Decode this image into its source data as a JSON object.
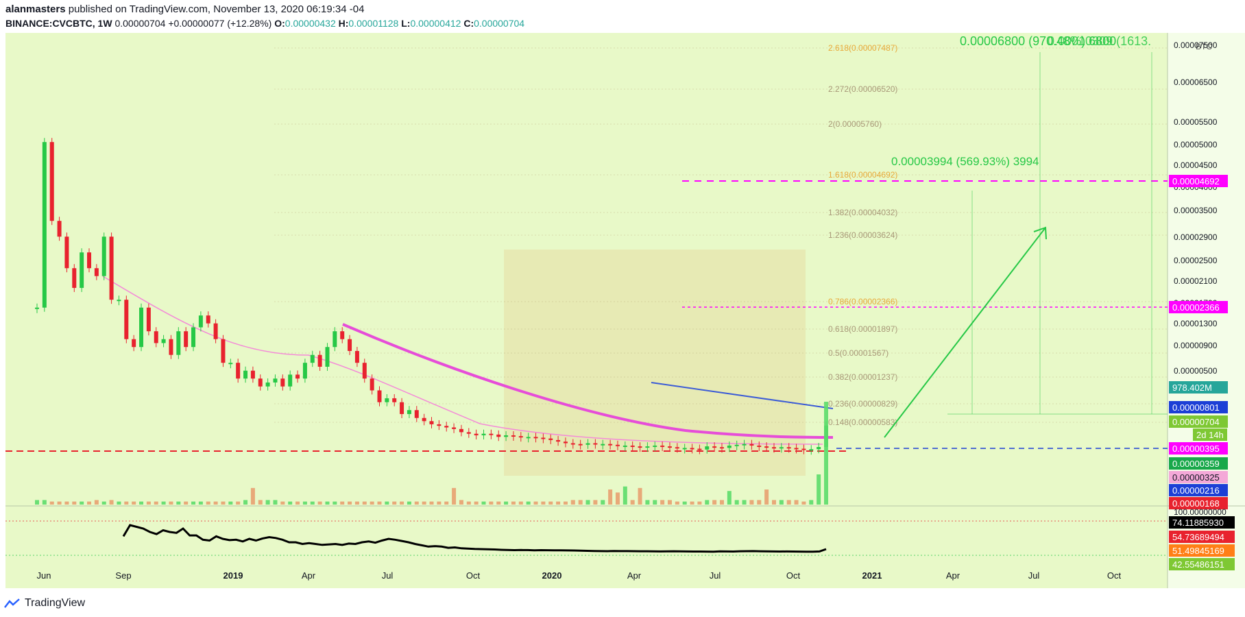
{
  "header": {
    "author": "alanmasters",
    "published": "published on TradingView.com, November 13, 2020 06:19:34 -04",
    "symbol": "BINANCE:CVCBTC, 1W",
    "last": "0.00000704",
    "change": "+0.00000077 (+12.28%)",
    "o_label": "O:",
    "o_value": "0.00000432",
    "h_label": "H:",
    "h_value": "0.00001128",
    "l_label": "L:",
    "l_value": "0.00000412",
    "c_label": "C:",
    "c_value": "0.00000704"
  },
  "footer": {
    "brand": "TradingView",
    "logo_icon": "tradingview-logo-icon"
  },
  "colors": {
    "up": "#26c846",
    "down": "#e8222e",
    "bg": "#e8f9c8",
    "magenta": "#ff00ff",
    "fib": "#c8a048"
  },
  "chart_data": {
    "type": "candlestick",
    "currency": "BTC",
    "x_tick_labels": [
      "Jun",
      "Sep",
      "2019",
      "Apr",
      "Jul",
      "Oct",
      "2020",
      "Apr",
      "Jul",
      "Oct",
      "2021",
      "Apr",
      "Jul",
      "Oct"
    ],
    "y_tick_labels": [
      "0.00007500",
      "0.00006500",
      "0.00005500",
      "0.00005000",
      "0.00004500",
      "0.00004000",
      "0.00003500",
      "0.00002900",
      "0.00002500",
      "0.00002100",
      "0.00001700",
      "0.00001300",
      "0.00000900",
      "0.00000500"
    ],
    "fib_levels": [
      {
        "label": "2.618(0.00007487)"
      },
      {
        "label": "2.272(0.00006520)"
      },
      {
        "label": "2(0.00005760)"
      },
      {
        "label": "1.618(0.00004692)"
      },
      {
        "label": "1.382(0.00004032)"
      },
      {
        "label": "1.236(0.00003624)"
      },
      {
        "label": "0.786(0.00002366)"
      },
      {
        "label": "0.618(0.00001897)"
      },
      {
        "label": "0.5(0.00001567)"
      },
      {
        "label": "0.382(0.00001237)"
      },
      {
        "label": "0.236(0.00000829)"
      },
      {
        "label": "0.148(0.00000583)"
      }
    ],
    "annotations": [
      "0.00006800 (970.48%) 6800",
      "0.00010309 (1613.",
      "0.00003994 (569.93%) 3994"
    ],
    "price_tags": [
      {
        "text": "0.00004692",
        "color": "#ff00ff"
      },
      {
        "text": "0.00002366",
        "color": "#ff00ff"
      },
      {
        "text": "978.402M",
        "color": "#26a69a"
      },
      {
        "text": "0.00000801",
        "color": "#1c3fd6"
      },
      {
        "text": "0.00000704",
        "color": "#7ec833"
      },
      {
        "text": "2d 14h",
        "color": "#7ec833"
      },
      {
        "text": "0.00000395",
        "color": "#ff00ff"
      },
      {
        "text": "0.00000359",
        "color": "#18a84a"
      },
      {
        "text": "0.00000325",
        "color": "#f4a8d8"
      },
      {
        "text": "0.00000216",
        "color": "#1c3fd6"
      },
      {
        "text": "0.00000168",
        "color": "#e8222e"
      }
    ],
    "oscillator": {
      "top_label": "100.00000000",
      "values": [
        {
          "text": "74.11885930",
          "color": "#000000"
        },
        {
          "text": "54.73689494",
          "color": "#e8222e"
        },
        {
          "text": "51.49845169",
          "color": "#ff7f16"
        },
        {
          "text": "42.55486151",
          "color": "#7ec833"
        }
      ]
    },
    "candles": [
      2200,
      4300,
      3300,
      3100,
      2700,
      2450,
      2900,
      2700,
      2600,
      3100,
      2300,
      2300,
      1800,
      1700,
      2200,
      1900,
      1750,
      1800,
      1600,
      1900,
      1700,
      1950,
      2100,
      2000,
      1800,
      1500,
      1500,
      1300,
      1400,
      1300,
      1200,
      1250,
      1300,
      1200,
      1350,
      1300,
      1500,
      1600,
      1450,
      1700,
      1900,
      1800,
      1650,
      1500,
      1300,
      1150,
      1000,
      1050,
      1000,
      850,
      900,
      800,
      760,
      720,
      700,
      680,
      660,
      620,
      600,
      580,
      600,
      590,
      560,
      580,
      570,
      560,
      560,
      550,
      540,
      520,
      500,
      480,
      470,
      460,
      480,
      470,
      470,
      460,
      450,
      450,
      440,
      430,
      440,
      450,
      440,
      430,
      420,
      420,
      410,
      400,
      440,
      430,
      420,
      450,
      460,
      470,
      450,
      440,
      430,
      420,
      430,
      420,
      410,
      400,
      404,
      432,
      704
    ],
    "volume": [
      3,
      3,
      2,
      2,
      2,
      2,
      2,
      2,
      3,
      2,
      3,
      2,
      2,
      2,
      2,
      2,
      2,
      2,
      2,
      2,
      2,
      2,
      2,
      2,
      2,
      2,
      2,
      2,
      3,
      11,
      3,
      3,
      3,
      2,
      2,
      2,
      2,
      2,
      2,
      2,
      2,
      2,
      2,
      2,
      2,
      2,
      2,
      2,
      2,
      2,
      2,
      2,
      2,
      2,
      2,
      2,
      11,
      3,
      2,
      2,
      2,
      2,
      2,
      2,
      2,
      2,
      2,
      2,
      2,
      2,
      2,
      2,
      3,
      3,
      3,
      3,
      3,
      10,
      8,
      12,
      3,
      11,
      3,
      3,
      3,
      3,
      2,
      2,
      2,
      2,
      3,
      3,
      3,
      9,
      3,
      3,
      3,
      3,
      10,
      3,
      3,
      3,
      3,
      2,
      3,
      20,
      80
    ]
  }
}
